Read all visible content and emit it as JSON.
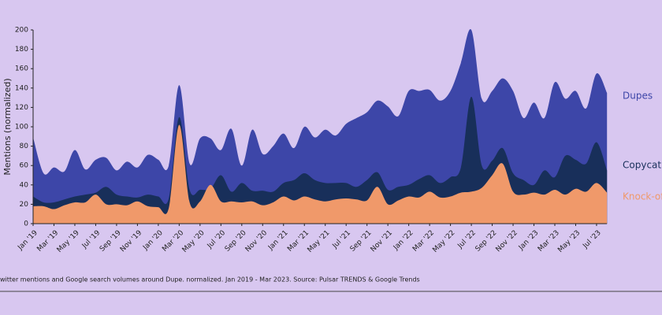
{
  "chart_data": {
    "type": "area",
    "ylabel": "Mentions (normalized)",
    "caption": "witter mentions and Google search volumes around Dupe. normalized. Jan 2019 - Mar 2023. Source: Pulsar TRENDS & Google Trends",
    "categories": [
      "Jan '19",
      null,
      "Mar '19",
      null,
      "May '19",
      null,
      "Jul '19",
      null,
      "Sep '19",
      null,
      "Nov '19",
      null,
      "Jan '20",
      null,
      "Mar '20",
      null,
      "May '20",
      null,
      "Jul '20",
      null,
      "Sep '20",
      null,
      "Nov '20",
      null,
      "Jan '21",
      null,
      "Mar '21",
      null,
      "May '21",
      null,
      "Jul '21",
      null,
      "Sep '21",
      null,
      "Nov '21",
      null,
      "Jan '22",
      null,
      "Mar '22",
      null,
      "May '22",
      null,
      "Jul '22",
      null,
      "Sep '22",
      null,
      "Nov '22",
      null,
      "Jan '23",
      null,
      "Mar '23",
      null,
      "May '23",
      null,
      "Jul '23",
      null
    ],
    "series": [
      {
        "name": "Dupes",
        "color": "#3d46a8",
        "values": [
          89,
          52,
          58,
          54,
          76,
          56,
          66,
          68,
          55,
          64,
          58,
          71,
          66,
          60,
          143,
          62,
          88,
          88,
          76,
          98,
          60,
          97,
          72,
          80,
          93,
          78,
          100,
          89,
          97,
          91,
          103,
          109,
          115,
          127,
          121,
          111,
          137,
          137,
          138,
          127,
          137,
          166,
          200,
          129,
          137,
          150,
          137,
          109,
          125,
          109,
          146,
          129,
          137,
          119,
          155,
          135
        ]
      },
      {
        "name": "Copycat",
        "color": "#182f5a",
        "values": [
          28,
          22,
          22,
          25,
          28,
          30,
          32,
          38,
          30,
          28,
          27,
          30,
          28,
          26,
          110,
          35,
          35,
          36,
          50,
          33,
          42,
          34,
          34,
          33,
          42,
          45,
          52,
          45,
          42,
          42,
          42,
          38,
          45,
          53,
          35,
          38,
          40,
          46,
          50,
          42,
          48,
          58,
          131,
          60,
          65,
          78,
          52,
          45,
          40,
          55,
          48,
          70,
          66,
          62,
          84,
          55
        ]
      },
      {
        "name": "Knock-of",
        "color": "#f0996a",
        "values": [
          18,
          18,
          15,
          19,
          22,
          22,
          30,
          20,
          20,
          19,
          23,
          18,
          17,
          16,
          102,
          22,
          23,
          40,
          23,
          23,
          22,
          23,
          19,
          22,
          28,
          24,
          28,
          25,
          23,
          25,
          26,
          25,
          24,
          38,
          20,
          24,
          28,
          27,
          33,
          27,
          28,
          32,
          33,
          37,
          50,
          62,
          33,
          30,
          32,
          30,
          35,
          30,
          36,
          33,
          42,
          32
        ]
      }
    ],
    "ylim": [
      0,
      200
    ],
    "yticks": [
      0,
      20,
      40,
      60,
      80,
      100,
      120,
      140,
      160,
      180,
      200
    ]
  }
}
